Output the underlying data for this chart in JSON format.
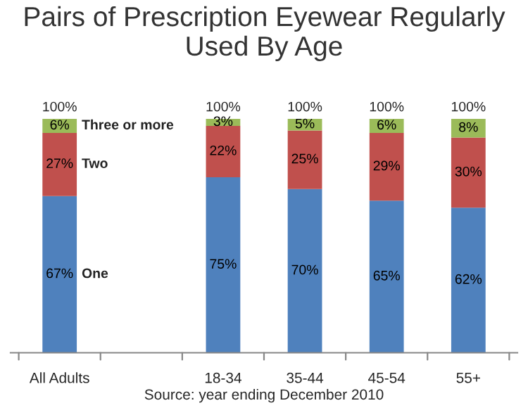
{
  "chart_data": {
    "type": "bar",
    "title": "Pairs of Prescription Eyewear Regularly Used By Age",
    "stacked": true,
    "categories": [
      "All Adults",
      null,
      "18-34",
      "35-44",
      "45-54",
      "55+"
    ],
    "series": [
      {
        "name": "One",
        "color": "#4f81bd",
        "values": [
          67,
          null,
          75,
          70,
          65,
          62
        ],
        "value_labels": [
          "67%",
          null,
          "75%",
          "70%",
          "65%",
          "62%"
        ]
      },
      {
        "name": "Two",
        "color": "#c0504d",
        "values": [
          27,
          null,
          22,
          25,
          29,
          30
        ],
        "value_labels": [
          "27%",
          null,
          "22%",
          "25%",
          "29%",
          "30%"
        ]
      },
      {
        "name": "Three or more",
        "color": "#9bbb59",
        "values": [
          6,
          null,
          3,
          5,
          6,
          8
        ],
        "value_labels": [
          "6%",
          null,
          "3%",
          "5%",
          "6%",
          "8%"
        ]
      }
    ],
    "totals": [
      "100%",
      null,
      "100%",
      "100%",
      "100%",
      "100%"
    ],
    "annotations": [
      "Source: year ending December 2010"
    ],
    "legend": false,
    "grid": false
  }
}
